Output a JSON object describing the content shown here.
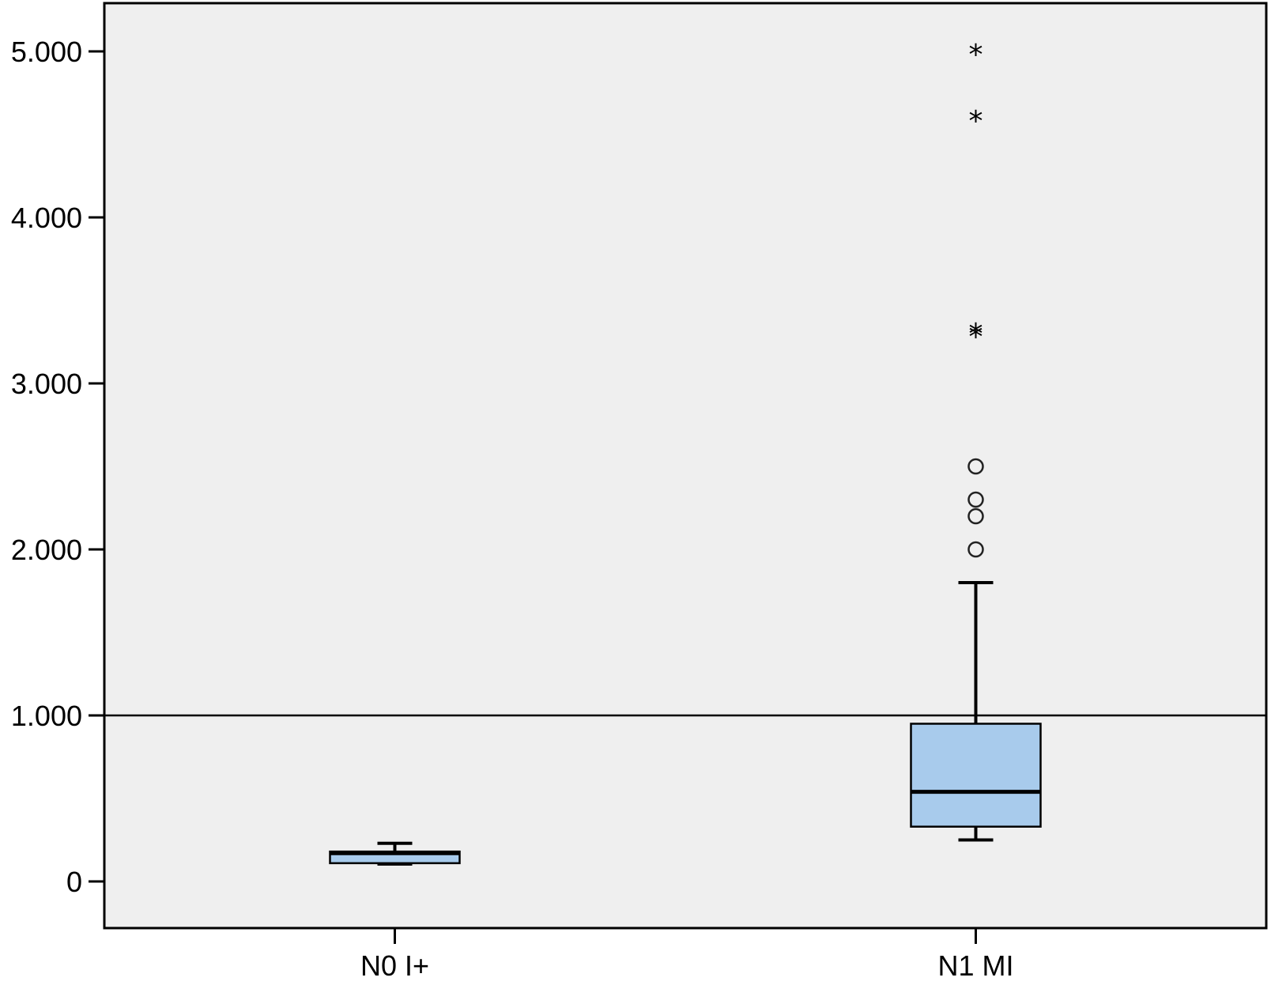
{
  "chart_data": {
    "type": "boxplot",
    "title": "",
    "xlabel": "",
    "ylabel": "",
    "ylim": [
      -200,
      5300
    ],
    "y_ticks": [
      0,
      1000,
      2000,
      3000,
      4000,
      5000
    ],
    "y_tick_labels": [
      "0",
      "1.000",
      "2.000",
      "3.000",
      "4.000",
      "5.000"
    ],
    "categories": [
      "N0 I+",
      "N1 MI"
    ],
    "reference_line": {
      "y": 1000
    },
    "boxes": [
      {
        "category": "N0 I+",
        "whisker_low": 105,
        "q1": 110,
        "median": 170,
        "q3": 180,
        "whisker_high": 230,
        "outliers": [],
        "extremes": []
      },
      {
        "category": "N1 MI",
        "whisker_low": 250,
        "q1": 330,
        "median": 540,
        "q3": 950,
        "whisker_high": 1800,
        "outliers": [
          2000,
          2200,
          2300,
          2500
        ],
        "extremes": [
          3300,
          3320,
          4600,
          5000
        ]
      }
    ],
    "grid": false,
    "legend": "none",
    "colors": {
      "plot_background": "#efefef",
      "box_fill": "#a8cbec",
      "line": "#000000"
    }
  }
}
